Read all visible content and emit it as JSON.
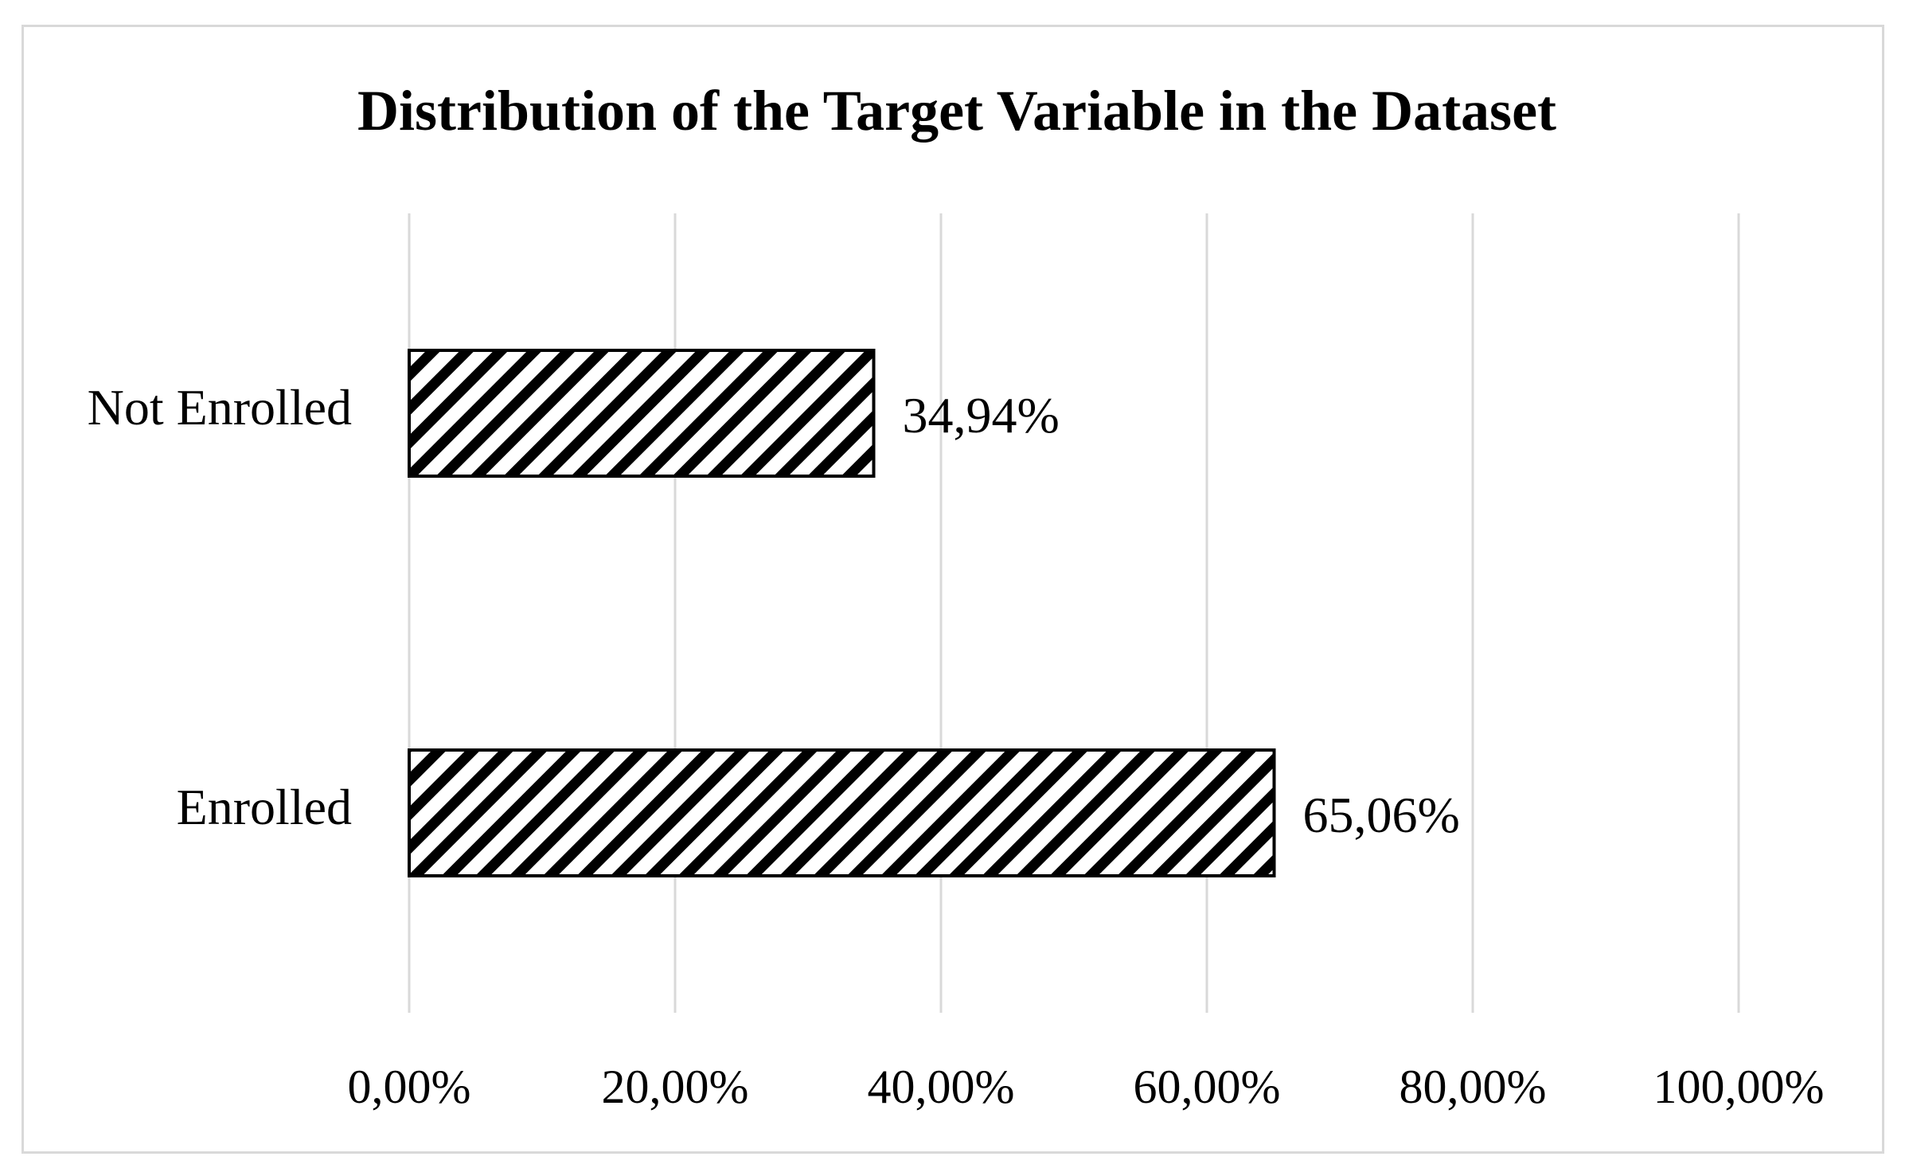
{
  "chart_data": {
    "type": "bar",
    "orientation": "horizontal",
    "title": "Distribution of the Target Variable in the Dataset",
    "xlabel": "",
    "ylabel": "",
    "categories": [
      "Not Enrolled",
      "Enrolled"
    ],
    "values": [
      34.94,
      65.06
    ],
    "value_labels": [
      "34,94%",
      "65,06%"
    ],
    "xlim": [
      0,
      100
    ],
    "ticks": [
      0,
      20,
      40,
      60,
      80,
      100
    ],
    "tick_labels": [
      "0,00%",
      "20,00%",
      "40,00%",
      "60,00%",
      "80,00%",
      "100,00%"
    ],
    "grid": "vertical",
    "legend": "none",
    "bar_fill": "diagonal-hatch",
    "colors": {
      "bar_stroke": "#000000",
      "hatch": "#000000",
      "bar_background": "#ffffff",
      "gridline": "#d9d9d9",
      "frame": "#d9d9d9"
    }
  }
}
